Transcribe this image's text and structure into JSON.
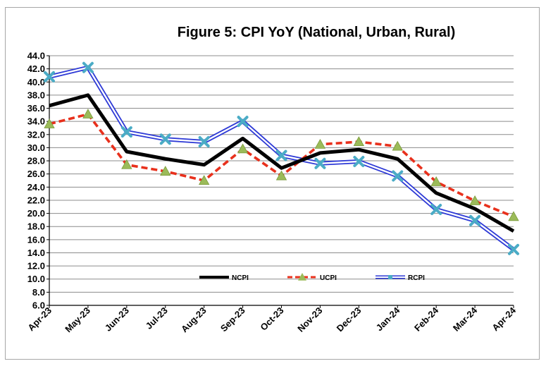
{
  "chart_data": {
    "type": "line",
    "title": "Figure 5: CPI YoY (National, Urban, Rural)",
    "xlabel": "",
    "ylabel": "",
    "ylim": [
      6.0,
      44.0
    ],
    "ytick_step": 2.0,
    "grid": true,
    "legend_position": "bottom-center",
    "categories": [
      "Apr-23",
      "May-23",
      "Jun-23",
      "Jul-23",
      "Aug-23",
      "Sep-23",
      "Oct-23",
      "Nov-23",
      "Dec-23",
      "Jan-24",
      "Feb-24",
      "Mar-24",
      "Apr-24"
    ],
    "series": [
      {
        "name": "NCPI",
        "color": "#000000",
        "style": "solid-thick",
        "values": [
          36.4,
          38.0,
          29.4,
          28.3,
          27.4,
          31.4,
          26.9,
          29.2,
          29.7,
          28.3,
          23.1,
          20.7,
          17.3
        ]
      },
      {
        "name": "UCPI",
        "color": "#e8301c",
        "marker_color": "#9bbb59",
        "marker": "triangle",
        "style": "dashed",
        "values": [
          33.6,
          35.1,
          27.4,
          26.4,
          25.0,
          29.8,
          25.7,
          30.5,
          30.9,
          30.2,
          24.8,
          21.9,
          19.5
        ]
      },
      {
        "name": "RCPI",
        "color": "#2e3ad6",
        "marker_color": "#4bacc6",
        "marker": "x",
        "style": "double",
        "values": [
          40.8,
          42.2,
          32.4,
          31.3,
          30.9,
          34.0,
          28.8,
          27.6,
          27.9,
          25.7,
          20.6,
          18.9,
          14.5
        ]
      }
    ]
  }
}
